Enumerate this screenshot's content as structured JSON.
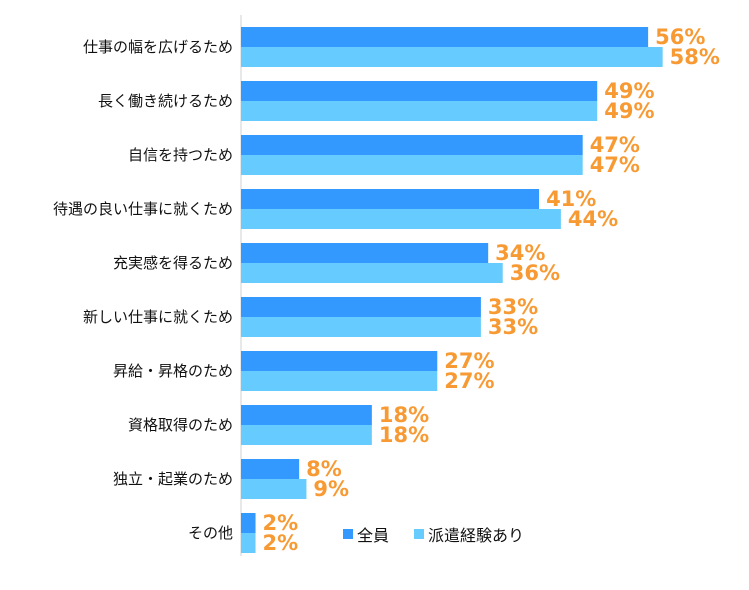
{
  "chart_data": {
    "type": "bar",
    "orientation": "horizontal",
    "categories": [
      "仕事の幅を広げるため",
      "長く働き続けるため",
      "自信を持つため",
      "待遇の良い仕事に就くため",
      "充実感を得るため",
      "新しい仕事に就くため",
      "昇給・昇格のため",
      "資格取得のため",
      "独立・起業のため",
      "その他"
    ],
    "series": [
      {
        "name": "全員",
        "color": "#3399FF",
        "values": [
          56,
          49,
          47,
          41,
          34,
          33,
          27,
          18,
          8,
          2
        ]
      },
      {
        "name": "派遣経験あり",
        "color": "#66CCFF",
        "values": [
          58,
          49,
          47,
          44,
          36,
          33,
          27,
          18,
          9,
          2
        ]
      }
    ],
    "value_suffix": "%",
    "label_color": "#F79A33",
    "legend_position": "bottom",
    "grid": false
  }
}
